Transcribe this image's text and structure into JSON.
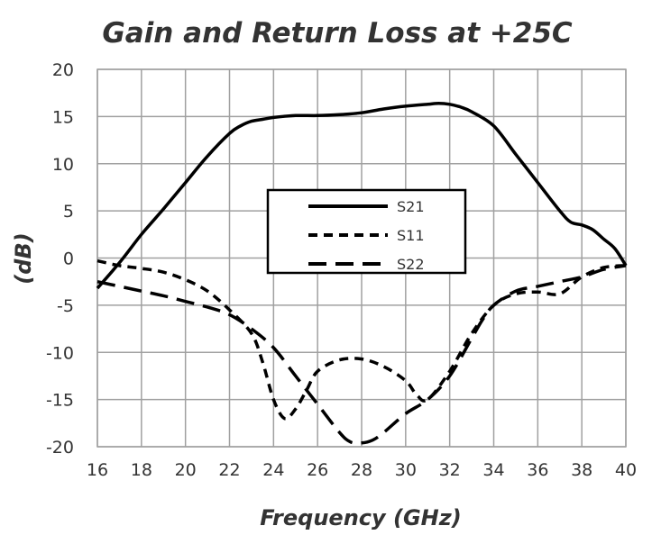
{
  "chart_data": {
    "type": "line",
    "title": "Gain and Return Loss at +25C",
    "xlabel": "Frequency (GHz)",
    "ylabel": "(dB)",
    "xlim": [
      16,
      40
    ],
    "ylim": [
      -20,
      20
    ],
    "xticks": [
      16,
      18,
      20,
      22,
      24,
      26,
      28,
      30,
      32,
      34,
      36,
      38,
      40
    ],
    "yticks": [
      20,
      15,
      10,
      5,
      0,
      -5,
      -10,
      -15,
      -20
    ],
    "grid": true,
    "legend_position": "center",
    "series": [
      {
        "name": "S21",
        "style": "solid",
        "color": "#000000",
        "x": [
          16,
          17,
          18,
          19,
          20,
          21,
          22,
          22.5,
          23,
          23.5,
          24,
          25,
          26,
          27,
          28,
          29,
          30,
          31,
          31.5,
          32,
          32.5,
          33,
          34,
          35,
          36,
          37,
          37.5,
          38,
          38.5,
          39,
          39.5,
          40
        ],
        "y": [
          -3.2,
          -0.5,
          2.5,
          5.2,
          8,
          10.8,
          13.2,
          14,
          14.5,
          14.7,
          14.9,
          15.1,
          15.1,
          15.2,
          15.4,
          15.8,
          16.1,
          16.3,
          16.4,
          16.3,
          16,
          15.5,
          14,
          11,
          8,
          5,
          3.8,
          3.5,
          3,
          2,
          1,
          -0.8
        ]
      },
      {
        "name": "S11",
        "style": "dashed",
        "color": "#000000",
        "x": [
          16,
          17,
          18,
          19,
          20,
          21,
          22,
          23,
          23.5,
          24,
          24.5,
          25,
          25.5,
          26,
          27,
          28,
          29,
          30,
          30.5,
          31,
          32,
          33,
          34,
          35,
          36,
          37,
          38,
          39,
          40
        ],
        "y": [
          -0.3,
          -0.8,
          -1.1,
          -1.5,
          -2.3,
          -3.5,
          -5.5,
          -8,
          -11,
          -15,
          -17,
          -16,
          -14,
          -12,
          -10.8,
          -10.7,
          -11.5,
          -13,
          -14.5,
          -15,
          -12,
          -8,
          -5,
          -3.8,
          -3.6,
          -3.8,
          -2,
          -1,
          -0.8
        ]
      },
      {
        "name": "S22",
        "style": "long-dashed",
        "color": "#000000",
        "x": [
          16,
          17,
          18,
          19,
          20,
          21,
          22,
          23,
          24,
          25,
          26,
          27,
          27.5,
          28,
          28.5,
          29,
          30,
          31,
          32,
          33,
          33.5,
          34,
          35,
          36,
          37,
          38,
          39,
          40
        ],
        "y": [
          -2.5,
          -3,
          -3.5,
          -4,
          -4.6,
          -5.2,
          -6,
          -7.5,
          -9.5,
          -12.5,
          -15.5,
          -18.5,
          -19.5,
          -19.6,
          -19.3,
          -18.5,
          -16.5,
          -15,
          -12.5,
          -8.5,
          -6.5,
          -5,
          -3.5,
          -3,
          -2.5,
          -2,
          -1.2,
          -0.8
        ]
      }
    ]
  }
}
